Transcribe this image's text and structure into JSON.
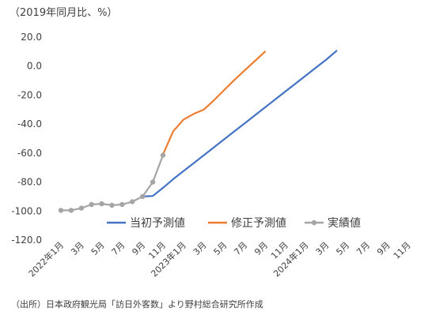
{
  "chart_data": {
    "type": "line",
    "title": "",
    "unit_label": "（2019年同月比、%）",
    "source_note": "（出所）日本政府観光局「訪日外客数」より野村総合研究所作成",
    "xlabel": "",
    "ylabel": "",
    "ylim": [
      -120,
      20
    ],
    "yticks": [
      20,
      0,
      -20,
      -40,
      -60,
      -80,
      -100,
      -120
    ],
    "y_tick_labels": [
      "20.0",
      "0.0",
      "-20.0",
      "-40.0",
      "-60.0",
      "-80.0",
      "-100.0",
      "-120.0"
    ],
    "x_tick_labels": [
      "2022年1月",
      "3月",
      "5月",
      "7月",
      "9月",
      "11月",
      "2023年1月",
      "3月",
      "5月",
      "7月",
      "9月",
      "11月",
      "2024年1月",
      "3月",
      "5月",
      "7月",
      "9月",
      "11月"
    ],
    "months": [
      "2022-01",
      "2022-02",
      "2022-03",
      "2022-04",
      "2022-05",
      "2022-06",
      "2022-07",
      "2022-08",
      "2022-09",
      "2022-10",
      "2022-11",
      "2022-12",
      "2023-01",
      "2023-02",
      "2023-03",
      "2023-04",
      "2023-05",
      "2023-06",
      "2023-07",
      "2023-08",
      "2023-09",
      "2023-10",
      "2023-11",
      "2023-12",
      "2024-01",
      "2024-02",
      "2024-03",
      "2024-04",
      "2024-05",
      "2024-06",
      "2024-07",
      "2024-08",
      "2024-09",
      "2024-10",
      "2024-11",
      "2024-12"
    ],
    "grid": false,
    "legend_position": "bottom-right",
    "series": [
      {
        "name": "当初予測値",
        "color": "#4472C4",
        "start_month": "2022-09",
        "values": [
          -90,
          -89.6,
          -84,
          -78,
          -72.5,
          -67,
          -61.5,
          -56,
          -50.5,
          -45,
          -39.5,
          -34,
          -28.5,
          -23,
          -17.5,
          -12,
          -6.5,
          -1,
          4.5,
          10.5
        ],
        "marker": false
      },
      {
        "name": "修正予測値",
        "color": "#ED7D31",
        "start_month": "2022-11",
        "values": [
          -61,
          -45,
          -37,
          -33,
          -30,
          -23.5,
          -16.5,
          -9.5,
          -3,
          3.5,
          10
        ],
        "marker": false
      },
      {
        "name": "実績値",
        "color": "#A5A5A5",
        "start_month": "2022-01",
        "values": [
          -99.5,
          -99.5,
          -98,
          -95.5,
          -95,
          -96,
          -95.5,
          -93.5,
          -90,
          -80,
          -61.5
        ],
        "marker": true
      }
    ]
  }
}
